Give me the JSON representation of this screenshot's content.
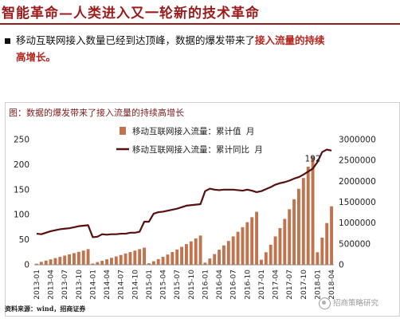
{
  "page": {
    "title": "智能革命—人类进入又一轮新的技术革命",
    "bullet": {
      "text_before": "移动互联网接入数量已经到达顶峰，数据的爆发带来了",
      "highlight": "接入流量的持续",
      "text_after": "高增长。"
    },
    "figure_title": "图：数据的爆发带来了接入流量的持续高增长",
    "source": "资料来源：wind，招商证券",
    "watermark": "招商策略研究",
    "colors": {
      "accent": "#9b1c1c",
      "bar": "#c0734d",
      "line": "#5a0f0f"
    }
  },
  "chart_data": {
    "type": "bar",
    "title": "",
    "x": [
      "2013-01",
      "2013-02",
      "2013-03",
      "2013-04",
      "2013-05",
      "2013-06",
      "2013-07",
      "2013-08",
      "2013-09",
      "2013-10",
      "2013-11",
      "2013-12",
      "2014-01",
      "2014-02",
      "2014-03",
      "2014-04",
      "2014-05",
      "2014-06",
      "2014-07",
      "2014-08",
      "2014-09",
      "2014-10",
      "2014-11",
      "2014-12",
      "2015-01",
      "2015-02",
      "2015-03",
      "2015-04",
      "2015-05",
      "2015-06",
      "2015-07",
      "2015-08",
      "2015-09",
      "2015-10",
      "2015-11",
      "2015-12",
      "2016-01",
      "2016-02",
      "2016-03",
      "2016-04",
      "2016-05",
      "2016-06",
      "2016-07",
      "2016-08",
      "2016-09",
      "2016-10",
      "2016-11",
      "2016-12",
      "2017-01",
      "2017-02",
      "2017-03",
      "2017-04",
      "2017-05",
      "2017-06",
      "2017-07",
      "2017-08",
      "2017-09",
      "2017-10",
      "2017-11",
      "2017-12",
      "2018-01",
      "2018-02",
      "2018-03",
      "2018-04"
    ],
    "x_tick_labels": [
      "2013-01",
      "2013-04",
      "2013-07",
      "2013-10",
      "2014-01",
      "2014-04",
      "2014-07",
      "2014-10",
      "2015-01",
      "2015-04",
      "2015-07",
      "2015-10",
      "2016-01",
      "2016-04",
      "2016-07",
      "2016-10",
      "2017-01",
      "2017-04",
      "2017-07",
      "2017-10",
      "2018-01",
      "2018-04"
    ],
    "series": [
      {
        "name": "移动互联网接入流量：累计值 月",
        "type": "bar",
        "axis": "right",
        "values": [
          25000,
          70000,
          100000,
          130000,
          160000,
          190000,
          220000,
          250000,
          280000,
          310000,
          340000,
          375000,
          30000,
          65000,
          95000,
          130000,
          165000,
          200000,
          235000,
          270000,
          305000,
          340000,
          375000,
          410000,
          35000,
          85000,
          135000,
          190000,
          245000,
          305000,
          365000,
          430000,
          495000,
          560000,
          630000,
          700000,
          50000,
          150000,
          255000,
          360000,
          465000,
          570000,
          680000,
          790000,
          900000,
          1020000,
          1140000,
          1270000,
          120000,
          300000,
          480000,
          680000,
          880000,
          1100000,
          1330000,
          1570000,
          1820000,
          2080000,
          2350000,
          2600000,
          300000,
          650000,
          1000000,
          1400000
        ]
      },
      {
        "name": "移动互联网接入流量：累计同比 月",
        "type": "line",
        "axis": "left",
        "values": [
          62,
          61,
          64,
          67,
          69,
          71,
          72,
          73,
          75,
          77,
          78,
          79,
          55,
          56,
          61,
          60,
          61,
          61,
          62,
          62,
          64,
          64,
          66,
          86,
          86,
          102,
          105,
          106,
          108,
          110,
          112,
          115,
          118,
          119,
          120,
          121,
          147,
          152,
          150,
          149,
          150,
          150,
          150,
          149,
          148,
          150,
          148,
          145,
          147,
          151,
          155,
          160,
          163,
          165,
          168,
          172,
          175,
          180,
          186,
          192,
          205,
          225,
          230,
          228
        ]
      }
    ],
    "annotation": "192",
    "ylim_left": [
      0,
      250
    ],
    "left_ticks": [
      0,
      50,
      100,
      150,
      200,
      250
    ],
    "ylim_right": [
      0,
      3000000
    ],
    "right_ticks": [
      "0",
      "500000",
      "1000000",
      "1500000",
      "2000000",
      "2500000",
      "3000000"
    ],
    "legend": "top-center",
    "grid": false
  }
}
